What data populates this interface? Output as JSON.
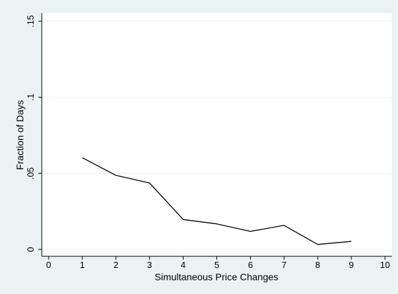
{
  "chart_data": {
    "type": "line",
    "title": "",
    "xlabel": "Simultaneous Price Changes",
    "ylabel": "Fraction of Days",
    "xlim": [
      0,
      10
    ],
    "ylim": [
      0,
      0.15
    ],
    "x_ticks": [
      0,
      1,
      2,
      3,
      4,
      5,
      6,
      7,
      8,
      9,
      10
    ],
    "x_tick_labels": [
      "0",
      "1",
      "2",
      "3",
      "4",
      "5",
      "6",
      "7",
      "8",
      "9",
      "10"
    ],
    "y_ticks": [
      0,
      0.05,
      0.1,
      0.15
    ],
    "y_tick_labels": [
      "0",
      ".05",
      ".1",
      ".15"
    ],
    "grid": "horizontal",
    "legend": "none",
    "colors": {
      "outer_background": "#eaf2f3",
      "plot_background": "#ffffff",
      "gridline": "#eaf2f3",
      "axis": "#000000",
      "line": "#000000"
    },
    "series": [
      {
        "x": [
          1,
          2,
          3,
          4,
          5,
          6,
          7,
          8,
          9
        ],
        "values": [
          0.0603,
          0.0487,
          0.0437,
          0.0197,
          0.0168,
          0.0119,
          0.0158,
          0.0033,
          0.0053
        ]
      }
    ]
  }
}
